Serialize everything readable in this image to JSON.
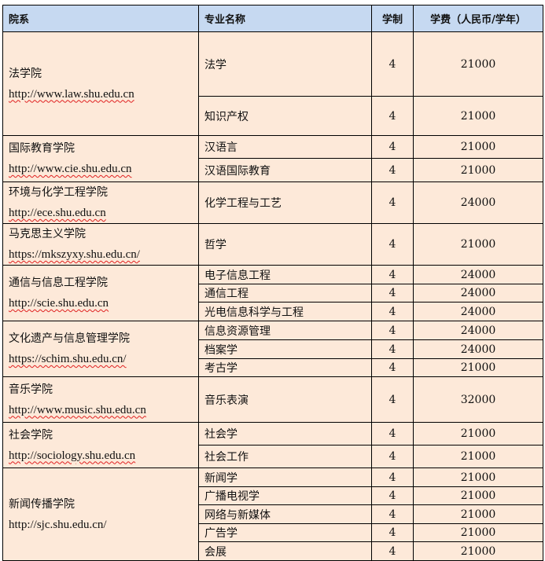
{
  "headers": [
    "院系",
    "专业名称",
    "学制",
    "学费（人民币/学年）"
  ],
  "colors": {
    "header_bg": "#c6d9f1",
    "body_bg": "#fde9d9"
  },
  "departments": [
    {
      "name": "法学院",
      "url": "http://www.law.shu.edu.cn",
      "majors": [
        {
          "name": "法学",
          "years": "4",
          "fee": "21000"
        },
        {
          "name": "知识产权",
          "years": "4",
          "fee": "21000"
        }
      ]
    },
    {
      "name": "国际教育学院",
      "url": "http://www.cie.shu.edu.cn",
      "majors": [
        {
          "name": "汉语言",
          "years": "4",
          "fee": "21000"
        },
        {
          "name": "汉语国际教育",
          "years": "4",
          "fee": "21000"
        }
      ]
    },
    {
      "name": "环境与化学工程学院",
      "url": "http://ece.shu.edu.cn",
      "majors": [
        {
          "name": "化学工程与工艺",
          "years": "4",
          "fee": "24000"
        }
      ]
    },
    {
      "name": "马克思主义学院",
      "url": "https://mkszyxy.shu.edu.cn/",
      "majors": [
        {
          "name": "哲学",
          "years": "4",
          "fee": "21000"
        }
      ]
    },
    {
      "name": "通信与信息工程学院",
      "url": "http://scie.shu.edu.cn",
      "majors": [
        {
          "name": "电子信息工程",
          "years": "4",
          "fee": "24000"
        },
        {
          "name": "通信工程",
          "years": "4",
          "fee": "24000"
        },
        {
          "name": "光电信息科学与工程",
          "years": "4",
          "fee": "24000"
        }
      ]
    },
    {
      "name": "文化遗产与信息管理学院",
      "url": "https://schim.shu.edu.cn/",
      "majors": [
        {
          "name": "信息资源管理",
          "years": "4",
          "fee": "24000"
        },
        {
          "name": "档案学",
          "years": "4",
          "fee": "24000"
        },
        {
          "name": "考古学",
          "years": "4",
          "fee": "21000"
        }
      ]
    },
    {
      "name": "音乐学院",
      "url": "http://www.music.shu.edu.cn",
      "majors": [
        {
          "name": "音乐表演",
          "years": "4",
          "fee": "32000"
        }
      ]
    },
    {
      "name": "社会学院",
      "url": "http://sociology.shu.edu.cn",
      "majors": [
        {
          "name": "社会学",
          "years": "4",
          "fee": "21000"
        },
        {
          "name": "社会工作",
          "years": "4",
          "fee": "21000"
        }
      ]
    },
    {
      "name": "新闻传播学院",
      "url": "http://sjc.shu.edu.cn/",
      "majors": [
        {
          "name": "新闻学",
          "years": "4",
          "fee": "21000"
        },
        {
          "name": "广播电视学",
          "years": "4",
          "fee": "21000"
        },
        {
          "name": "网络与新媒体",
          "years": "4",
          "fee": "21000"
        },
        {
          "name": "广告学",
          "years": "4",
          "fee": "21000"
        },
        {
          "name": "会展",
          "years": "4",
          "fee": "21000"
        }
      ]
    }
  ]
}
